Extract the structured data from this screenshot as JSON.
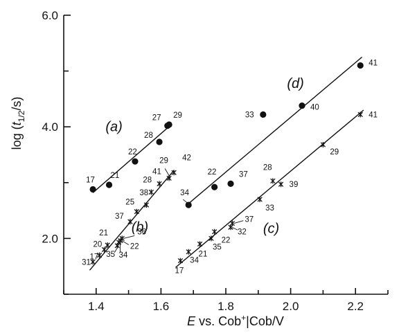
{
  "chart_data": {
    "type": "scatter",
    "xlabel_parts": [
      "E",
      " vs. Cob",
      "+",
      "|Cob/V"
    ],
    "ylabel_parts": [
      "log (",
      "t",
      "1/2",
      "/s)"
    ],
    "xlim": [
      1.3,
      2.3
    ],
    "ylim": [
      1.0,
      6.0
    ],
    "xticks": [
      1.4,
      1.6,
      1.8,
      2.0,
      2.2
    ],
    "xtick_labels": [
      "1.4",
      "1.6",
      "1.8",
      "2.0",
      "2.2"
    ],
    "yticks": [
      2.0,
      4.0,
      6.0
    ],
    "ytick_labels": [
      "2.0",
      "4.0",
      "6.0"
    ],
    "grid": false,
    "series": [
      {
        "name": "(a)",
        "marker": "circle",
        "fit": [
          [
            1.39,
            2.82
          ],
          [
            1.62,
            3.98
          ]
        ],
        "points": [
          {
            "x": 1.39,
            "y": 2.88,
            "label": "17"
          },
          {
            "x": 1.44,
            "y": 2.96,
            "label": "21"
          },
          {
            "x": 1.52,
            "y": 3.38,
            "label": "22"
          },
          {
            "x": 1.595,
            "y": 3.73,
            "label": "28"
          },
          {
            "x": 1.62,
            "y": 4.02,
            "label": "27"
          },
          {
            "x": 1.625,
            "y": 4.04,
            "label": "29"
          }
        ]
      },
      {
        "name": "(b)",
        "marker": "asterisk",
        "fit": [
          [
            1.38,
            1.43
          ],
          [
            1.64,
            3.22
          ]
        ],
        "points": [
          {
            "x": 1.39,
            "y": 1.58,
            "label": "31"
          },
          {
            "x": 1.41,
            "y": 1.7,
            "label": "17"
          },
          {
            "x": 1.425,
            "y": 1.8,
            "label": "20"
          },
          {
            "x": 1.435,
            "y": 1.88,
            "label": "21"
          },
          {
            "x": 1.465,
            "y": 1.87,
            "label": "35"
          },
          {
            "x": 1.47,
            "y": 1.93,
            "label": "34"
          },
          {
            "x": 1.475,
            "y": 1.96,
            "label": "22"
          },
          {
            "x": 1.48,
            "y": 2.0,
            "label": "36"
          },
          {
            "x": 1.505,
            "y": 2.3,
            "label": "37"
          },
          {
            "x": 1.525,
            "y": 2.48,
            "label": "25"
          },
          {
            "x": 1.555,
            "y": 2.6,
            "label": "38"
          },
          {
            "x": 1.57,
            "y": 2.83,
            "label": "28"
          },
          {
            "x": 1.595,
            "y": 2.98,
            "label": "41"
          },
          {
            "x": 1.625,
            "y": 3.08,
            "label": "29"
          },
          {
            "x": 1.64,
            "y": 3.18,
            "label": "42"
          }
        ]
      },
      {
        "name": "(c)",
        "marker": "asterisk",
        "fit": [
          [
            1.645,
            1.48
          ],
          [
            2.225,
            4.3
          ]
        ],
        "points": [
          {
            "x": 1.66,
            "y": 1.6,
            "label": "17"
          },
          {
            "x": 1.685,
            "y": 1.76,
            "label": "34"
          },
          {
            "x": 1.72,
            "y": 1.9,
            "label": "21"
          },
          {
            "x": 1.755,
            "y": 2.0,
            "label": "35"
          },
          {
            "x": 1.765,
            "y": 2.12,
            "label": "22"
          },
          {
            "x": 1.815,
            "y": 2.2,
            "label": "32"
          },
          {
            "x": 1.82,
            "y": 2.27,
            "label": "37"
          },
          {
            "x": 1.905,
            "y": 2.7,
            "label": "33"
          },
          {
            "x": 1.945,
            "y": 3.03,
            "label": "28"
          },
          {
            "x": 1.97,
            "y": 2.97,
            "label": "39"
          },
          {
            "x": 2.1,
            "y": 3.68,
            "label": "29"
          },
          {
            "x": 2.215,
            "y": 4.22,
            "label": "41"
          }
        ]
      },
      {
        "name": "(d)",
        "marker": "circle",
        "fit": [
          [
            1.68,
            2.6
          ],
          [
            2.22,
            5.25
          ]
        ],
        "points": [
          {
            "x": 1.685,
            "y": 2.6,
            "label": "34"
          },
          {
            "x": 1.765,
            "y": 2.92,
            "label": "22"
          },
          {
            "x": 1.815,
            "y": 2.98,
            "label": "37"
          },
          {
            "x": 1.915,
            "y": 4.22,
            "label": "33"
          },
          {
            "x": 2.035,
            "y": 4.38,
            "label": "40"
          },
          {
            "x": 2.215,
            "y": 5.1,
            "label": "41"
          }
        ]
      }
    ]
  }
}
